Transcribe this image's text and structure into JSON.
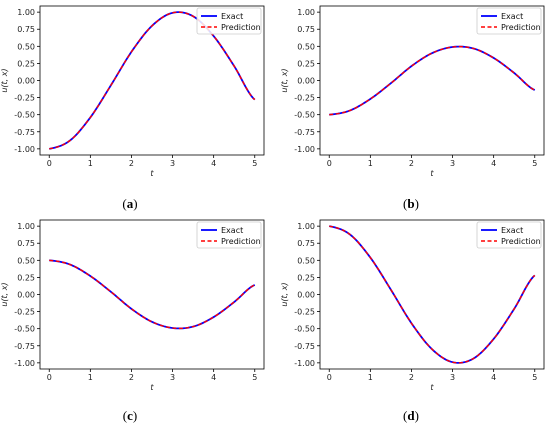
{
  "chart_data": [
    {
      "type": "line",
      "panel_label": "(a)",
      "xlabel": "t",
      "ylabel": "u(t, x)",
      "xlim": [
        0,
        5
      ],
      "ylim": [
        -1.0,
        1.0
      ],
      "x_ticks": [
        0,
        1,
        2,
        3,
        4,
        5
      ],
      "y_ticks": [
        "1.00",
        "0.75",
        "0.50",
        "0.25",
        "0.00",
        "-0.25",
        "-0.50",
        "-0.75",
        "-1.00"
      ],
      "legend_position": "top-right",
      "x": [
        0,
        0.5,
        1.0,
        1.5,
        2.0,
        2.5,
        3.0,
        3.5,
        4.0,
        4.5,
        5.0
      ],
      "series": [
        {
          "name": "Exact",
          "color": "#0000ff",
          "style": "solid",
          "values": [
            -1.0,
            -0.88,
            -0.54,
            -0.07,
            0.42,
            0.8,
            0.99,
            0.94,
            0.65,
            0.21,
            -0.28
          ]
        },
        {
          "name": "Prediction",
          "color": "#ff0000",
          "style": "dashed",
          "values": [
            -1.0,
            -0.88,
            -0.54,
            -0.07,
            0.42,
            0.8,
            0.99,
            0.94,
            0.65,
            0.21,
            -0.28
          ]
        }
      ]
    },
    {
      "type": "line",
      "panel_label": "(b)",
      "xlabel": "t",
      "ylabel": "u(t, x)",
      "xlim": [
        0,
        5
      ],
      "ylim": [
        -1.0,
        1.0
      ],
      "x_ticks": [
        0,
        1,
        2,
        3,
        4,
        5
      ],
      "y_ticks": [
        "1.00",
        "0.75",
        "0.50",
        "0.25",
        "0.00",
        "-0.25",
        "-0.50",
        "-0.75",
        "-1.00"
      ],
      "legend_position": "top-right",
      "x": [
        0,
        0.5,
        1.0,
        1.5,
        2.0,
        2.5,
        3.0,
        3.5,
        4.0,
        4.5,
        5.0
      ],
      "series": [
        {
          "name": "Exact",
          "color": "#0000ff",
          "style": "solid",
          "values": [
            -0.5,
            -0.44,
            -0.27,
            -0.04,
            0.21,
            0.4,
            0.49,
            0.47,
            0.33,
            0.11,
            -0.14
          ]
        },
        {
          "name": "Prediction",
          "color": "#ff0000",
          "style": "dashed",
          "values": [
            -0.5,
            -0.44,
            -0.27,
            -0.04,
            0.21,
            0.4,
            0.49,
            0.47,
            0.33,
            0.11,
            -0.14
          ]
        }
      ]
    },
    {
      "type": "line",
      "panel_label": "(c)",
      "xlabel": "t",
      "ylabel": "u(t, x)",
      "xlim": [
        0,
        5
      ],
      "ylim": [
        -1.0,
        1.0
      ],
      "x_ticks": [
        0,
        1,
        2,
        3,
        4,
        5
      ],
      "y_ticks": [
        "1.00",
        "0.75",
        "0.50",
        "0.25",
        "0.00",
        "-0.25",
        "-0.50",
        "-0.75",
        "-1.00"
      ],
      "legend_position": "top-right",
      "x": [
        0,
        0.5,
        1.0,
        1.5,
        2.0,
        2.5,
        3.0,
        3.5,
        4.0,
        4.5,
        5.0
      ],
      "series": [
        {
          "name": "Exact",
          "color": "#0000ff",
          "style": "solid",
          "values": [
            0.5,
            0.44,
            0.27,
            0.04,
            -0.21,
            -0.4,
            -0.49,
            -0.47,
            -0.33,
            -0.11,
            0.14
          ]
        },
        {
          "name": "Prediction",
          "color": "#ff0000",
          "style": "dashed",
          "values": [
            0.5,
            0.44,
            0.27,
            0.04,
            -0.21,
            -0.4,
            -0.49,
            -0.47,
            -0.33,
            -0.11,
            0.14
          ]
        }
      ]
    },
    {
      "type": "line",
      "panel_label": "(d)",
      "xlabel": "t",
      "ylabel": "u(t, x)",
      "xlim": [
        0,
        5
      ],
      "ylim": [
        -1.0,
        1.0
      ],
      "x_ticks": [
        0,
        1,
        2,
        3,
        4,
        5
      ],
      "y_ticks": [
        "1.00",
        "0.75",
        "0.50",
        "0.25",
        "0.00",
        "-0.25",
        "-0.50",
        "-0.75",
        "-1.00"
      ],
      "legend_position": "top-right",
      "x": [
        0,
        0.5,
        1.0,
        1.5,
        2.0,
        2.5,
        3.0,
        3.5,
        4.0,
        4.5,
        5.0
      ],
      "series": [
        {
          "name": "Exact",
          "color": "#0000ff",
          "style": "solid",
          "values": [
            1.0,
            0.88,
            0.54,
            0.07,
            -0.42,
            -0.8,
            -0.99,
            -0.94,
            -0.65,
            -0.21,
            0.28
          ]
        },
        {
          "name": "Prediction",
          "color": "#ff0000",
          "style": "dashed",
          "values": [
            1.0,
            0.88,
            0.54,
            0.07,
            -0.42,
            -0.8,
            -0.99,
            -0.94,
            -0.65,
            -0.21,
            0.28
          ]
        }
      ]
    }
  ]
}
